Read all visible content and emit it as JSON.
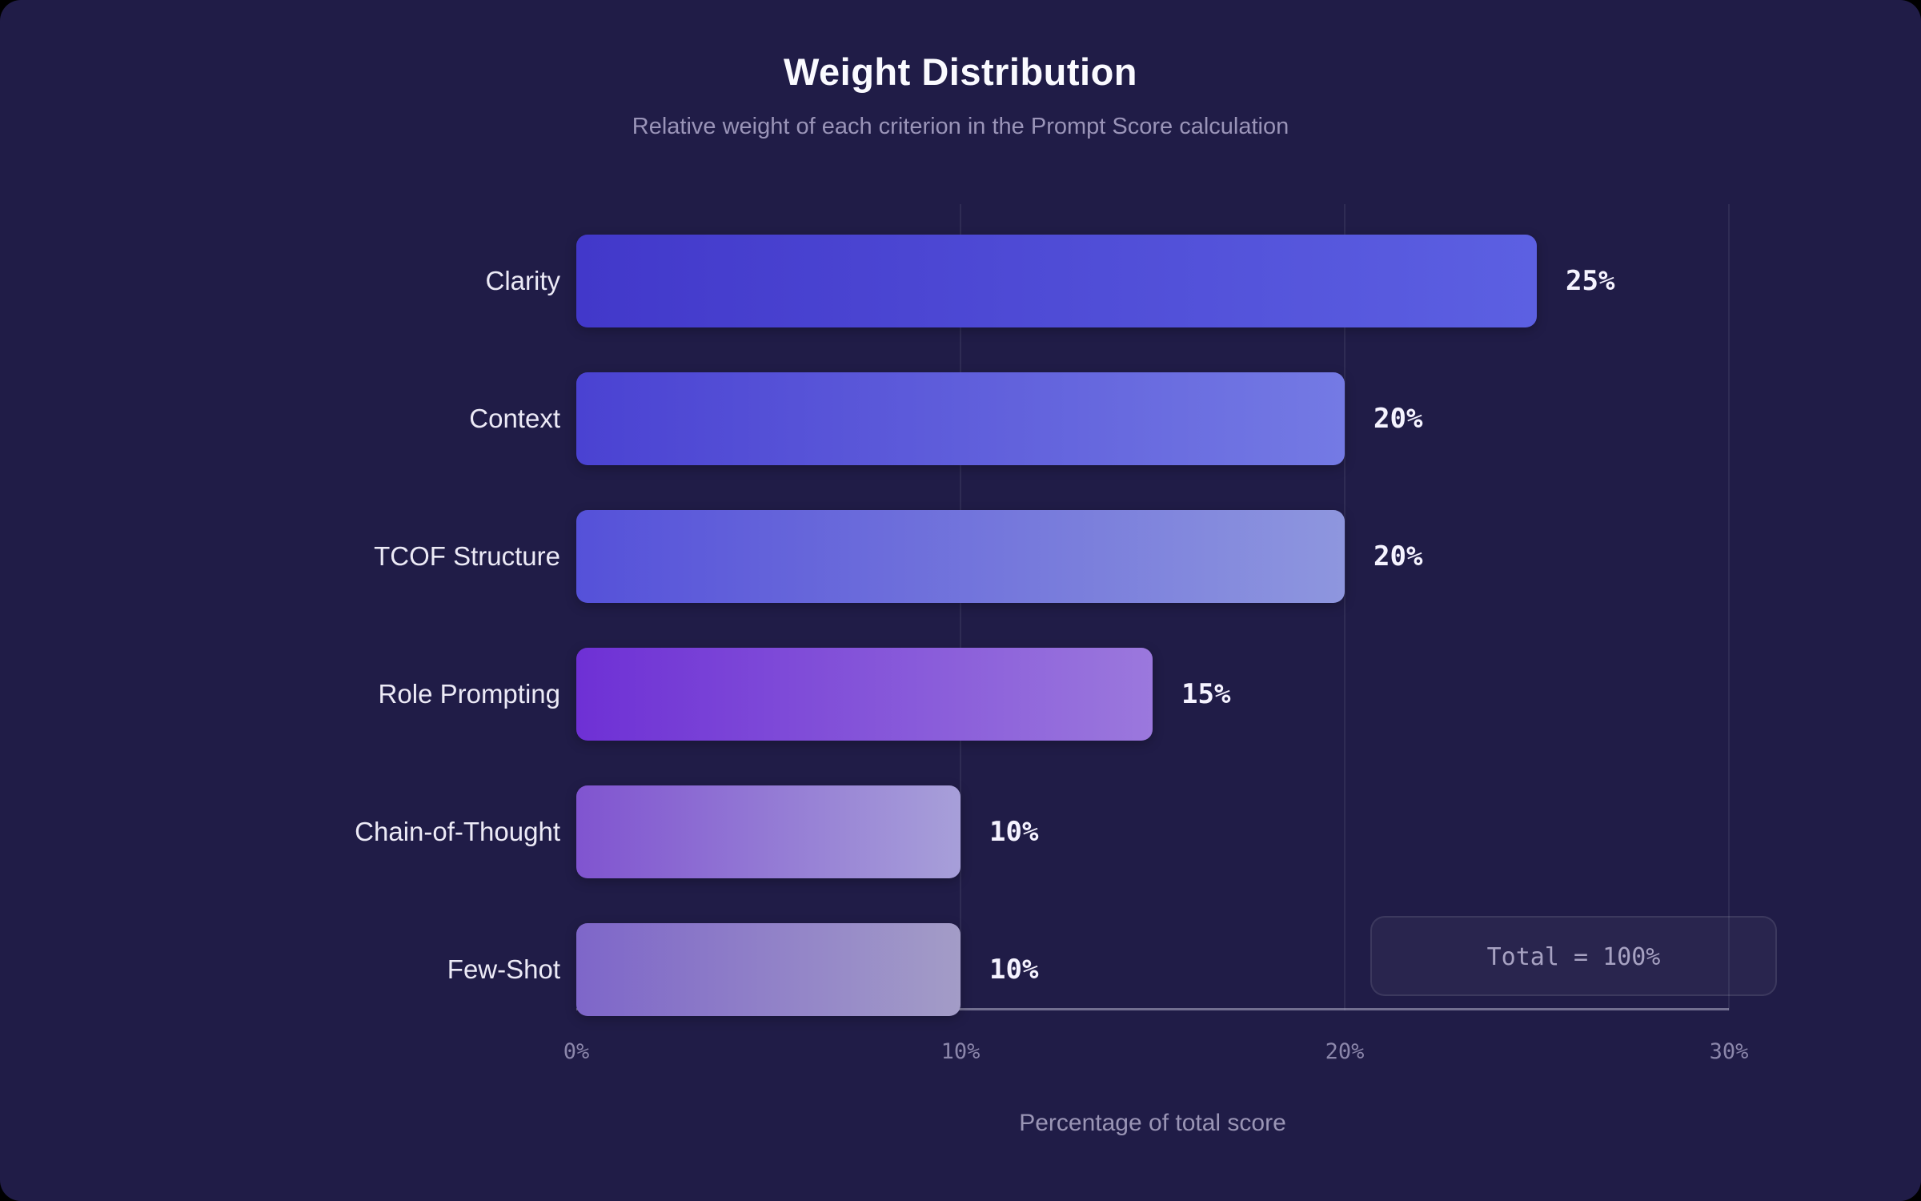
{
  "page": {
    "background": "#000000",
    "card_background": "#201c47"
  },
  "header": {
    "title": "Weight Distribution",
    "subtitle": "Relative weight of each criterion in the Prompt Score calculation"
  },
  "chart_data": {
    "type": "bar",
    "orientation": "horizontal",
    "title": "Weight Distribution",
    "subtitle": "Relative weight of each criterion in the Prompt Score calculation",
    "categories": [
      "Clarity",
      "Context",
      "TCOF Structure",
      "Role Prompting",
      "Chain-of-Thought",
      "Few-Shot"
    ],
    "values": [
      25,
      20,
      20,
      15,
      10,
      10
    ],
    "value_labels": [
      "25%",
      "20%",
      "20%",
      "15%",
      "10%",
      "10%"
    ],
    "bar_gradients": [
      [
        "#4238ca",
        "#5c60e2"
      ],
      [
        "#4a42d2",
        "#747ae4"
      ],
      [
        "#5551d9",
        "#8e96de"
      ],
      [
        "#6e30d5",
        "#9b78dd"
      ],
      [
        "#8054d0",
        "#a79fd9"
      ],
      [
        "#7e66c9",
        "#a39cc7"
      ]
    ],
    "xlabel": "Percentage of total score",
    "ylabel": "",
    "xlim": [
      0,
      30
    ],
    "x_ticks": [
      {
        "label": "0%",
        "value": 0
      },
      {
        "label": "10%",
        "value": 10
      },
      {
        "label": "20%",
        "value": 20
      },
      {
        "label": "30%",
        "value": 30
      }
    ],
    "grid": "vertical-only",
    "gridline_values": [
      10,
      20,
      30
    ],
    "legend": "none",
    "annotation": "Total = 100%"
  },
  "footer_badge": {
    "label": "Total = 100%"
  }
}
